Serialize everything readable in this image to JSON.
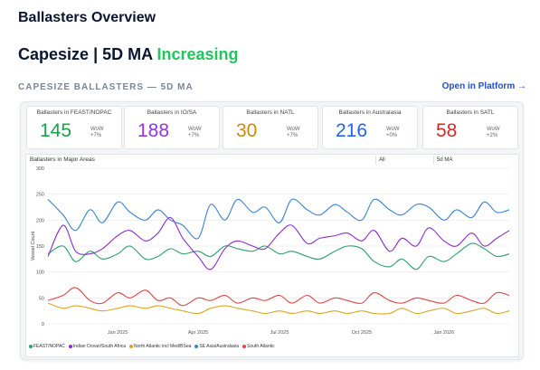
{
  "header": {
    "title": "Ballasters Overview"
  },
  "summary": {
    "vessel": "Capesize",
    "sep": "|",
    "metric": "5D MA",
    "status": "Increasing",
    "status_color": "#22c55e"
  },
  "section": {
    "label": "CAPESIZE BALLASTERS — 5D MA",
    "link": "Open in Platform →"
  },
  "kpis": [
    {
      "label": "Ballasters in FEAST/NOPAC",
      "value": "145",
      "wow_label": "WoW",
      "wow": "+7%",
      "color": "#16a34a"
    },
    {
      "label": "Ballasters in IO/SA",
      "value": "188",
      "wow_label": "WoW",
      "wow": "+7%",
      "color": "#9333ea"
    },
    {
      "label": "Ballasters in NATL",
      "value": "30",
      "wow_label": "WoW",
      "wow": "+7%",
      "color": "#ca8a04"
    },
    {
      "label": "Ballasters in Australasia",
      "value": "216",
      "wow_label": "WoW",
      "wow": "+0%",
      "color": "#2563eb"
    },
    {
      "label": "Ballasters in SATL",
      "value": "58",
      "wow_label": "WoW",
      "wow": "+2%",
      "color": "#dc2626"
    }
  ],
  "chart_controls": {
    "filter": "All",
    "mode": "5d MA"
  },
  "chart_data": {
    "type": "line",
    "title": "Ballasters in Major Areas",
    "ylabel": "Vessel Count",
    "xlabel": "",
    "ylim": [
      0,
      300
    ],
    "yticks": [
      0,
      50,
      100,
      150,
      200,
      250,
      300
    ],
    "x_range": [
      "2024-10-15",
      "2026-03-15"
    ],
    "xticks": [
      "Jan 2025",
      "Apr 2025",
      "Jul 2025",
      "Oct 2025",
      "Jan 2026"
    ],
    "xtick_dates": [
      "2025-01-01",
      "2025-04-01",
      "2025-07-01",
      "2025-10-01",
      "2026-01-01"
    ],
    "grid": true,
    "legend_position": "bottom",
    "dates": [
      "2024-10-15",
      "2024-11-01",
      "2024-11-15",
      "2024-12-01",
      "2024-12-15",
      "2025-01-01",
      "2025-01-15",
      "2025-02-01",
      "2025-02-15",
      "2025-03-01",
      "2025-03-15",
      "2025-04-01",
      "2025-04-15",
      "2025-05-01",
      "2025-05-15",
      "2025-06-01",
      "2025-06-15",
      "2025-07-01",
      "2025-07-15",
      "2025-08-01",
      "2025-08-15",
      "2025-09-01",
      "2025-09-15",
      "2025-10-01",
      "2025-10-15",
      "2025-11-01",
      "2025-11-15",
      "2025-12-01",
      "2025-12-15",
      "2026-01-01",
      "2026-01-15",
      "2026-02-01",
      "2026-02-15",
      "2026-03-01",
      "2026-03-15"
    ],
    "series": [
      {
        "name": "FEAST/NOPAC",
        "color": "#2f9e6b",
        "values": [
          135,
          150,
          120,
          140,
          125,
          135,
          150,
          125,
          130,
          145,
          135,
          140,
          130,
          150,
          145,
          140,
          150,
          135,
          140,
          130,
          125,
          140,
          150,
          145,
          120,
          110,
          125,
          105,
          130,
          120,
          135,
          155,
          145,
          130,
          135
        ]
      },
      {
        "name": "Indian Ocean/South Africa",
        "color": "#8e2bd0",
        "values": [
          130,
          190,
          140,
          135,
          145,
          170,
          180,
          160,
          175,
          205,
          165,
          130,
          105,
          145,
          160,
          150,
          145,
          175,
          190,
          155,
          165,
          170,
          175,
          160,
          180,
          140,
          165,
          150,
          185,
          160,
          150,
          175,
          150,
          165,
          180
        ]
      },
      {
        "name": "North Atlantic incl Med/BSea",
        "color": "#d9a520",
        "values": [
          40,
          30,
          35,
          30,
          25,
          30,
          35,
          30,
          35,
          30,
          25,
          20,
          30,
          35,
          30,
          25,
          20,
          25,
          20,
          25,
          20,
          25,
          20,
          25,
          20,
          20,
          30,
          20,
          25,
          30,
          20,
          25,
          30,
          20,
          25
        ]
      },
      {
        "name": "SE Asia/Australasia",
        "color": "#3b82d0",
        "values": [
          240,
          210,
          180,
          220,
          195,
          235,
          215,
          200,
          220,
          200,
          190,
          165,
          230,
          200,
          240,
          215,
          225,
          195,
          240,
          220,
          210,
          230,
          215,
          200,
          240,
          220,
          210,
          230,
          225,
          200,
          220,
          205,
          235,
          215,
          220
        ]
      },
      {
        "name": "South Atlantic",
        "color": "#e04545",
        "values": [
          45,
          55,
          70,
          45,
          40,
          60,
          50,
          65,
          45,
          50,
          35,
          50,
          45,
          55,
          40,
          50,
          45,
          55,
          40,
          55,
          40,
          50,
          45,
          40,
          60,
          45,
          40,
          50,
          45,
          40,
          55,
          45,
          40,
          60,
          55
        ]
      }
    ]
  }
}
